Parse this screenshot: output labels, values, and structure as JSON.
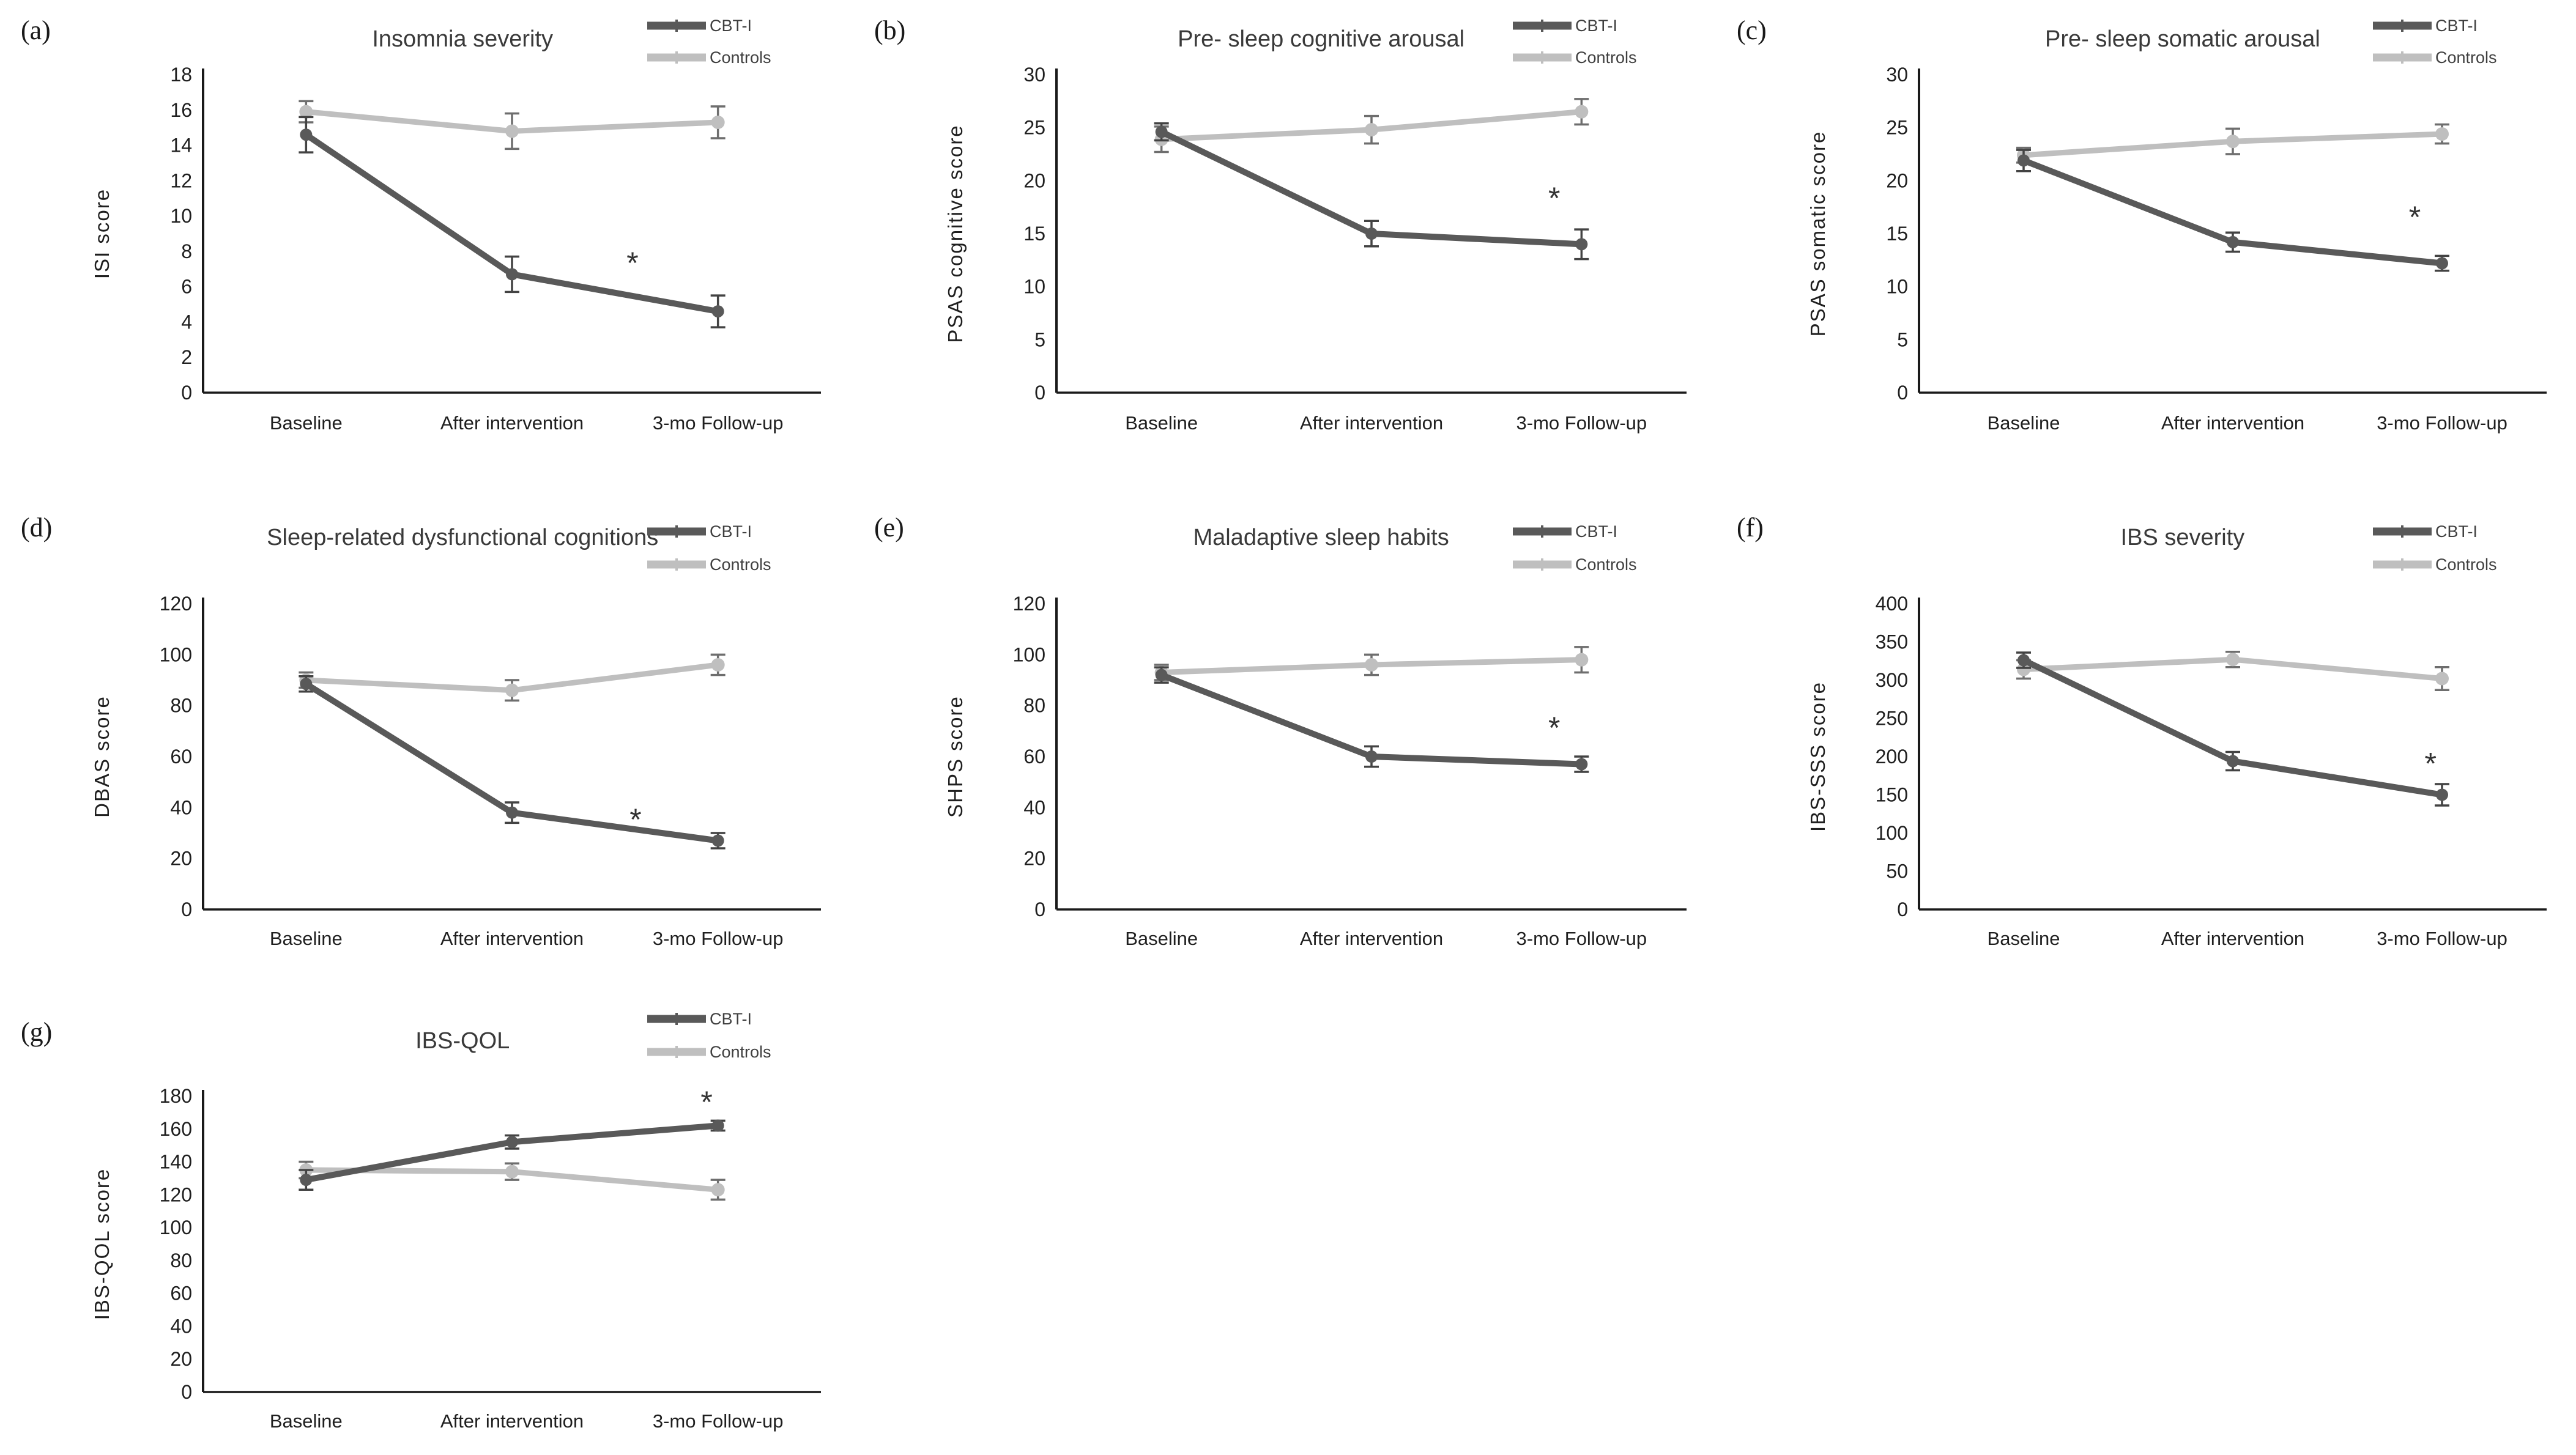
{
  "figure": {
    "description": "Seven-panel line chart figure comparing CBT-I group vs Controls at three time points",
    "legend_series": [
      "CBT-I",
      "Controls"
    ],
    "colors": {
      "cbt_i_line": "#595959",
      "cbt_i_error": "#434343",
      "controls_line": "#bfbfbf",
      "controls_error": "#6e6e6e",
      "axis": "#1a1a1a",
      "tick_text": "#1f1f1f",
      "title_text": "#3a3a3a",
      "asterisk": "#333333"
    }
  },
  "chart_data": [
    {
      "panel_label": "(a)",
      "type": "line",
      "title": "Insomnia severity",
      "ylabel": "ISI score",
      "ylim": [
        0,
        18
      ],
      "ytick_step": 2,
      "grid": false,
      "legend_position": "top-right",
      "categories": [
        "Baseline",
        "After intervention",
        "3-mo Follow-up"
      ],
      "series": [
        {
          "name": "CBT-I",
          "values": [
            14.6,
            6.7,
            4.6
          ],
          "errors": [
            1.0,
            1.0,
            0.9
          ]
        },
        {
          "name": "Controls",
          "values": [
            15.9,
            14.8,
            15.3
          ],
          "errors": [
            0.6,
            1.0,
            0.9
          ]
        }
      ],
      "significance": {
        "symbol": "*",
        "x_frac": 0.695,
        "y_value": 7.3
      }
    },
    {
      "panel_label": "(b)",
      "type": "line",
      "title": "Pre- sleep cognitive arousal",
      "ylabel": "PSAS cognitive score",
      "ylim": [
        0,
        30
      ],
      "ytick_step": 5,
      "grid": false,
      "legend_position": "top-right",
      "categories": [
        "Baseline",
        "After intervention",
        "3-mo Follow-up"
      ],
      "series": [
        {
          "name": "CBT-I",
          "values": [
            24.6,
            15.0,
            14.0
          ],
          "errors": [
            0.8,
            1.2,
            1.4
          ]
        },
        {
          "name": "Controls",
          "values": [
            23.9,
            24.8,
            26.5
          ],
          "errors": [
            1.2,
            1.3,
            1.2
          ]
        }
      ],
      "significance": {
        "symbol": "*",
        "x_frac": 0.79,
        "y_value": 18.3
      }
    },
    {
      "panel_label": "(c)",
      "type": "line",
      "title": "Pre- sleep somatic arousal",
      "ylabel": "PSAS somatic score",
      "ylim": [
        0,
        30
      ],
      "ytick_step": 5,
      "grid": false,
      "legend_position": "top-right",
      "categories": [
        "Baseline",
        "After intervention",
        "3-mo Follow-up"
      ],
      "series": [
        {
          "name": "CBT-I",
          "values": [
            21.9,
            14.2,
            12.2
          ],
          "errors": [
            1.0,
            0.9,
            0.7
          ]
        },
        {
          "name": "Controls",
          "values": [
            22.4,
            23.7,
            24.4
          ],
          "errors": [
            0.7,
            1.2,
            0.9
          ]
        }
      ],
      "significance": {
        "symbol": "*",
        "x_frac": 0.79,
        "y_value": 16.5
      }
    },
    {
      "panel_label": "(d)",
      "type": "line",
      "title": "Sleep-related dysfunctional cognitions",
      "ylabel": "DBAS score",
      "ylim": [
        0,
        120
      ],
      "ytick_step": 20,
      "grid": false,
      "legend_position": "top-right",
      "categories": [
        "Baseline",
        "After intervention",
        "3-mo Follow-up"
      ],
      "series": [
        {
          "name": "CBT-I",
          "values": [
            88.5,
            38.0,
            27.0
          ],
          "errors": [
            3.0,
            4.0,
            3.0
          ]
        },
        {
          "name": "Controls",
          "values": [
            90.0,
            86.0,
            96.0
          ],
          "errors": [
            3.0,
            4.0,
            4.0
          ]
        }
      ],
      "significance": {
        "symbol": "*",
        "x_frac": 0.7,
        "y_value": 35
      }
    },
    {
      "panel_label": "(e)",
      "type": "line",
      "title": "Maladaptive sleep habits",
      "ylabel": "SHPS score",
      "ylim": [
        0,
        120
      ],
      "ytick_step": 20,
      "grid": false,
      "legend_position": "top-right",
      "categories": [
        "Baseline",
        "After intervention",
        "3-mo Follow-up"
      ],
      "series": [
        {
          "name": "CBT-I",
          "values": [
            92.0,
            60.0,
            57.0
          ],
          "errors": [
            3.0,
            4.0,
            3.0
          ]
        },
        {
          "name": "Controls",
          "values": [
            93.0,
            96.0,
            98.0
          ],
          "errors": [
            3.0,
            4.0,
            5.0
          ]
        }
      ],
      "significance": {
        "symbol": "*",
        "x_frac": 0.79,
        "y_value": 71
      }
    },
    {
      "panel_label": "(f)",
      "type": "line",
      "title": "IBS severity",
      "ylabel": "IBS-SSS score",
      "ylim": [
        0,
        400
      ],
      "ytick_step": 50,
      "grid": false,
      "legend_position": "top-right",
      "categories": [
        "Baseline",
        "After intervention",
        "3-mo Follow-up"
      ],
      "series": [
        {
          "name": "CBT-I",
          "values": [
            326,
            194,
            150
          ],
          "errors": [
            10,
            12,
            14
          ]
        },
        {
          "name": "Controls",
          "values": [
            314,
            327,
            302
          ],
          "errors": [
            12,
            10,
            15
          ]
        }
      ],
      "significance": {
        "symbol": "*",
        "x_frac": 0.815,
        "y_value": 190
      }
    },
    {
      "panel_label": "(g)",
      "type": "line",
      "title": "IBS-QOL",
      "ylabel": "IBS-QOL score",
      "ylim": [
        0,
        180
      ],
      "ytick_step": 20,
      "grid": false,
      "legend_position": "top-right",
      "categories": [
        "Baseline",
        "After intervention",
        "3-mo Follow-up"
      ],
      "series": [
        {
          "name": "CBT-I",
          "values": [
            129,
            152,
            162
          ],
          "errors": [
            6,
            4,
            3
          ]
        },
        {
          "name": "Controls",
          "values": [
            135,
            134,
            123
          ],
          "errors": [
            5,
            5,
            6
          ]
        }
      ],
      "significance": {
        "symbol": "*",
        "x_frac": 0.815,
        "y_value": 176
      }
    }
  ]
}
